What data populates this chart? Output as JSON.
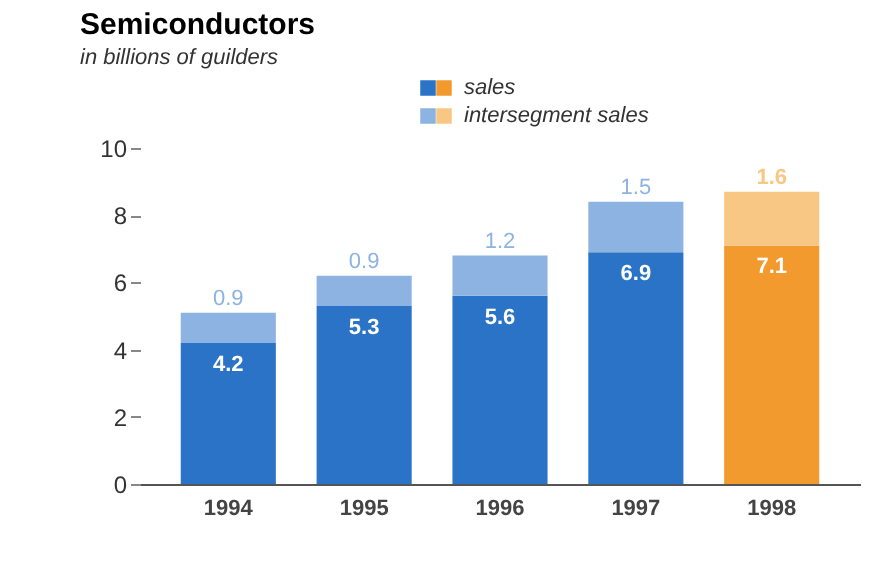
{
  "chart_data": {
    "type": "bar",
    "title": "Semiconductors",
    "subtitle": "in billions of guilders",
    "categories": [
      "1994",
      "1995",
      "1996",
      "1997",
      "1998"
    ],
    "stacked": true,
    "data_labels": true,
    "legend": "top",
    "grid": false,
    "series": [
      {
        "name": "sales",
        "color": "#2b73c6",
        "colors": [
          "#2b73c6",
          "#2b73c6",
          "#2b73c6",
          "#2b73c6",
          "#f29a2e"
        ],
        "values": [
          4.2,
          5.3,
          5.6,
          6.9,
          7.1
        ]
      },
      {
        "name": "intersegment sales",
        "color": "#8db3e2",
        "colors": [
          "#8db3e2",
          "#8db3e2",
          "#8db3e2",
          "#8db3e2",
          "#f8c783"
        ],
        "values": [
          0.9,
          0.9,
          1.2,
          1.5,
          1.6
        ]
      }
    ],
    "ylim": [
      0,
      10
    ],
    "yticks": [
      0,
      2,
      4,
      6,
      8,
      10
    ]
  }
}
